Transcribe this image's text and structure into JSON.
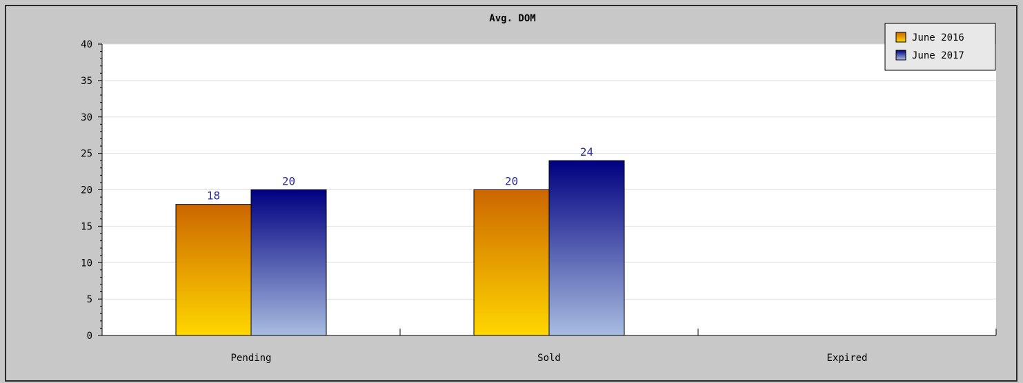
{
  "chart_data": {
    "type": "bar",
    "title": "Avg. DOM",
    "categories": [
      "Pending",
      "Sold",
      "Expired"
    ],
    "series": [
      {
        "name": "June 2016",
        "values": [
          18,
          20,
          null
        ],
        "color_top": "#cc6600",
        "color_bottom": "#ffd700"
      },
      {
        "name": "June 2017",
        "values": [
          20,
          24,
          null
        ],
        "color_top": "#000080",
        "color_bottom": "#a8bce0"
      }
    ],
    "data_labels": [
      [
        "18",
        "20",
        ""
      ],
      [
        "20",
        "24",
        ""
      ]
    ],
    "y_ticks": [
      0,
      5,
      10,
      15,
      20,
      25,
      30,
      35,
      40
    ],
    "ylim": [
      0,
      40
    ],
    "xlabel": "",
    "ylabel": "",
    "grid": true,
    "legend_position": "top-right",
    "colors": {
      "frame_bg": "#c8c8c8",
      "plot_bg": "#ffffff",
      "grid": "#e0e0e0",
      "axis": "#000000",
      "data_label": "#2a2aa0"
    }
  }
}
